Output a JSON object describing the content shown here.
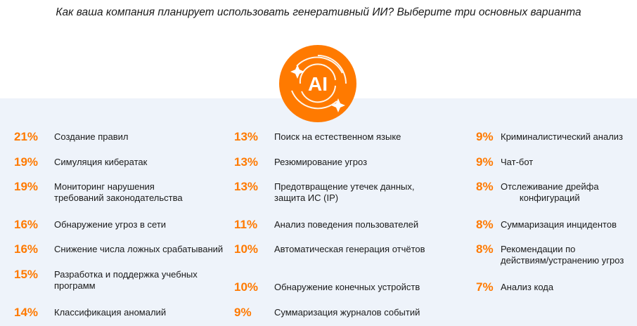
{
  "title": "Как ваша компания планирует использовать генеративный ИИ? Выберите три основных варианта",
  "logo": {
    "text": "AI",
    "color": "#ff7a00"
  },
  "accent_color": "#ff7a00",
  "columns": [
    [
      {
        "pct": "21%",
        "label": "Создание правил"
      },
      {
        "pct": "19%",
        "label": "Симуляция кибератак"
      },
      {
        "pct": "19%",
        "label": "Мониторинг нарушения\nтребований законодательства"
      },
      {
        "pct": "16%",
        "label": "Обнаружение угроз в сети"
      },
      {
        "pct": "16%",
        "label": "Снижение числа ложных срабатываний"
      },
      {
        "pct": "15%",
        "label": "Разработка и поддержка учебных\nпрограмм"
      },
      {
        "pct": "14%",
        "label": "Классификация аномалий"
      }
    ],
    [
      {
        "pct": "13%",
        "label": "Поиск на естественном языке"
      },
      {
        "pct": "13%",
        "label": "Резюмирование угроз"
      },
      {
        "pct": "13%",
        "label": "Предотвращение утечек данных,\nзащита ИС (IP)"
      },
      {
        "pct": "11%",
        "label": "Анализ поведения пользователей"
      },
      {
        "pct": "10%",
        "label": "Автоматическая генерация отчётов"
      },
      {
        "pct": "10%",
        "label": "Обнаружение конечных устройств"
      },
      {
        "pct": "9%",
        "label": "Суммаризация журналов событий"
      }
    ],
    [
      {
        "pct": "9%",
        "label": "Криминалистический анализ"
      },
      {
        "pct": "9%",
        "label": "Чат-бот"
      },
      {
        "pct": "8%",
        "label": "Отслеживание дрейфа\nконфигураций"
      },
      {
        "pct": "8%",
        "label": "Суммаризация инцидентов"
      },
      {
        "pct": "8%",
        "label": "Рекомендации по\nдействиям/устранению угроз"
      },
      {
        "pct": "7%",
        "label": "Анализ кода"
      }
    ]
  ]
}
